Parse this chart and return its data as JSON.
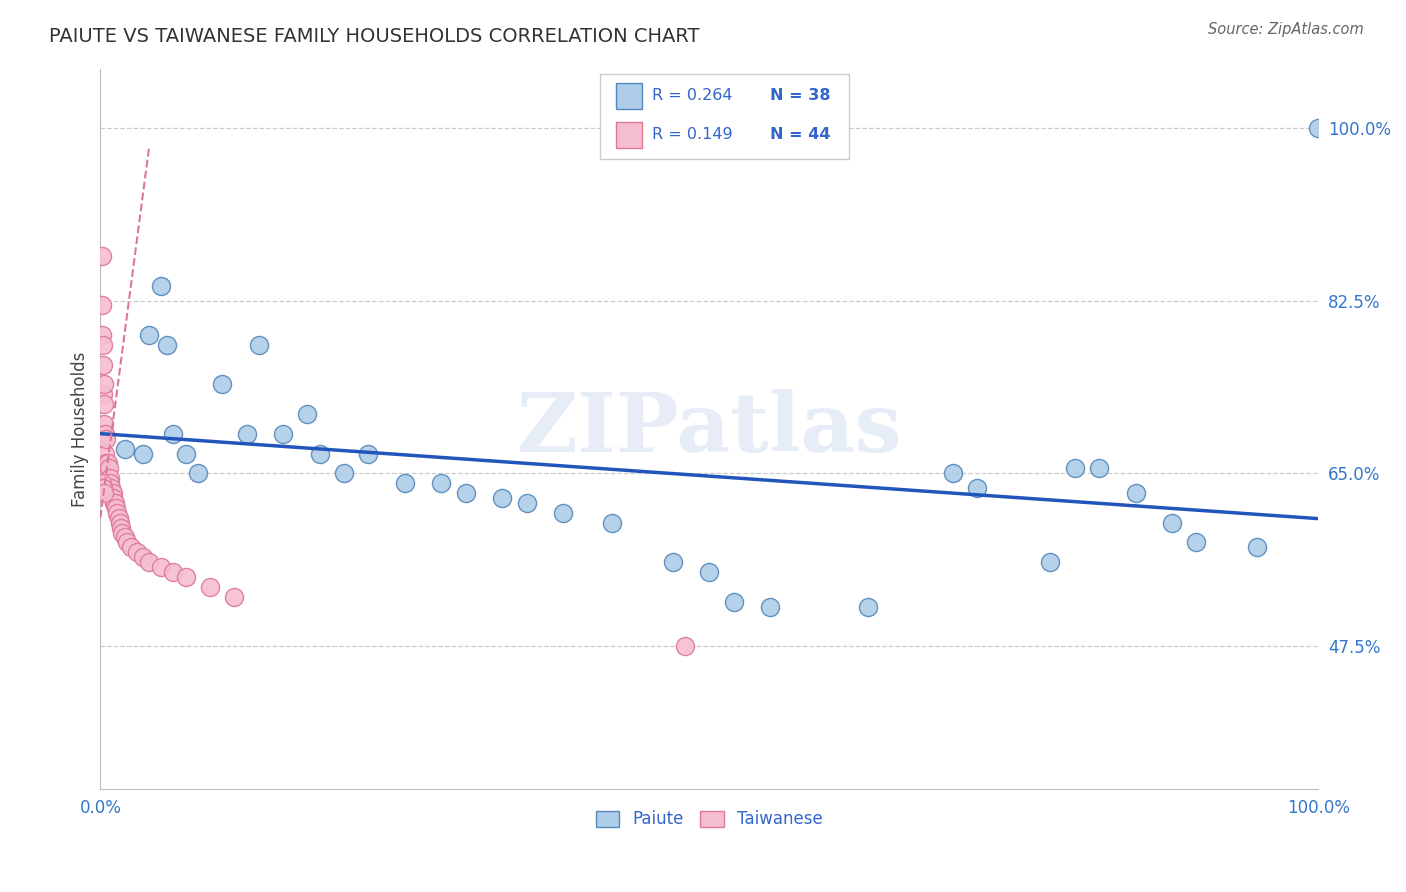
{
  "title": "PAIUTE VS TAIWANESE FAMILY HOUSEHOLDS CORRELATION CHART",
  "source": "Source: ZipAtlas.com",
  "ylabel": "Family Households",
  "xlim": [
    0.0,
    1.0
  ],
  "ylim": [
    0.33,
    1.06
  ],
  "yticks": [
    0.475,
    0.65,
    0.825,
    1.0
  ],
  "ytick_labels": [
    "47.5%",
    "65.0%",
    "82.5%",
    "100.0%"
  ],
  "xtick_labels": [
    "0.0%",
    "",
    "",
    "",
    "",
    "100.0%"
  ],
  "legend_r_blue": "R = 0.264",
  "legend_n_blue": "N = 38",
  "legend_r_pink": "R = 0.149",
  "legend_n_pink": "N = 44",
  "blue_color": "#aecde8",
  "pink_color": "#f5bece",
  "blue_edge": "#5588bb",
  "pink_edge": "#dd7799",
  "trend_blue": "#2255bb",
  "trend_pink": "#dd8899",
  "watermark": "ZIPatlas",
  "paiute_x": [
    0.02,
    0.035,
    0.04,
    0.05,
    0.055,
    0.06,
    0.07,
    0.08,
    0.1,
    0.12,
    0.13,
    0.15,
    0.17,
    0.18,
    0.2,
    0.22,
    0.25,
    0.28,
    0.3,
    0.33,
    0.35,
    0.38,
    0.42,
    0.47,
    0.5,
    0.52,
    0.55,
    0.63,
    0.7,
    0.72,
    0.78,
    0.8,
    0.82,
    0.85,
    0.88,
    0.9,
    0.95,
    1.0
  ],
  "paiute_y": [
    0.675,
    0.67,
    0.79,
    0.84,
    0.78,
    0.69,
    0.67,
    0.65,
    0.74,
    0.69,
    0.78,
    0.69,
    0.71,
    0.67,
    0.65,
    0.67,
    0.64,
    0.64,
    0.63,
    0.625,
    0.62,
    0.61,
    0.6,
    0.56,
    0.55,
    0.52,
    0.515,
    0.515,
    0.65,
    0.635,
    0.56,
    0.655,
    0.655,
    0.63,
    0.6,
    0.58,
    0.575,
    1.0
  ],
  "taiwanese_x": [
    0.001,
    0.001,
    0.001,
    0.002,
    0.002,
    0.002,
    0.003,
    0.003,
    0.003,
    0.004,
    0.004,
    0.005,
    0.005,
    0.006,
    0.006,
    0.007,
    0.008,
    0.008,
    0.009,
    0.01,
    0.01,
    0.011,
    0.012,
    0.013,
    0.014,
    0.015,
    0.016,
    0.017,
    0.018,
    0.02,
    0.022,
    0.025,
    0.03,
    0.035,
    0.04,
    0.05,
    0.06,
    0.07,
    0.09,
    0.11,
    0.001,
    0.002,
    0.003,
    0.48
  ],
  "taiwanese_y": [
    0.87,
    0.82,
    0.79,
    0.78,
    0.76,
    0.73,
    0.74,
    0.72,
    0.7,
    0.69,
    0.67,
    0.685,
    0.66,
    0.66,
    0.65,
    0.655,
    0.645,
    0.64,
    0.635,
    0.63,
    0.625,
    0.62,
    0.62,
    0.615,
    0.61,
    0.605,
    0.6,
    0.595,
    0.59,
    0.585,
    0.58,
    0.575,
    0.57,
    0.565,
    0.56,
    0.555,
    0.55,
    0.545,
    0.535,
    0.525,
    0.64,
    0.635,
    0.63,
    0.475
  ]
}
